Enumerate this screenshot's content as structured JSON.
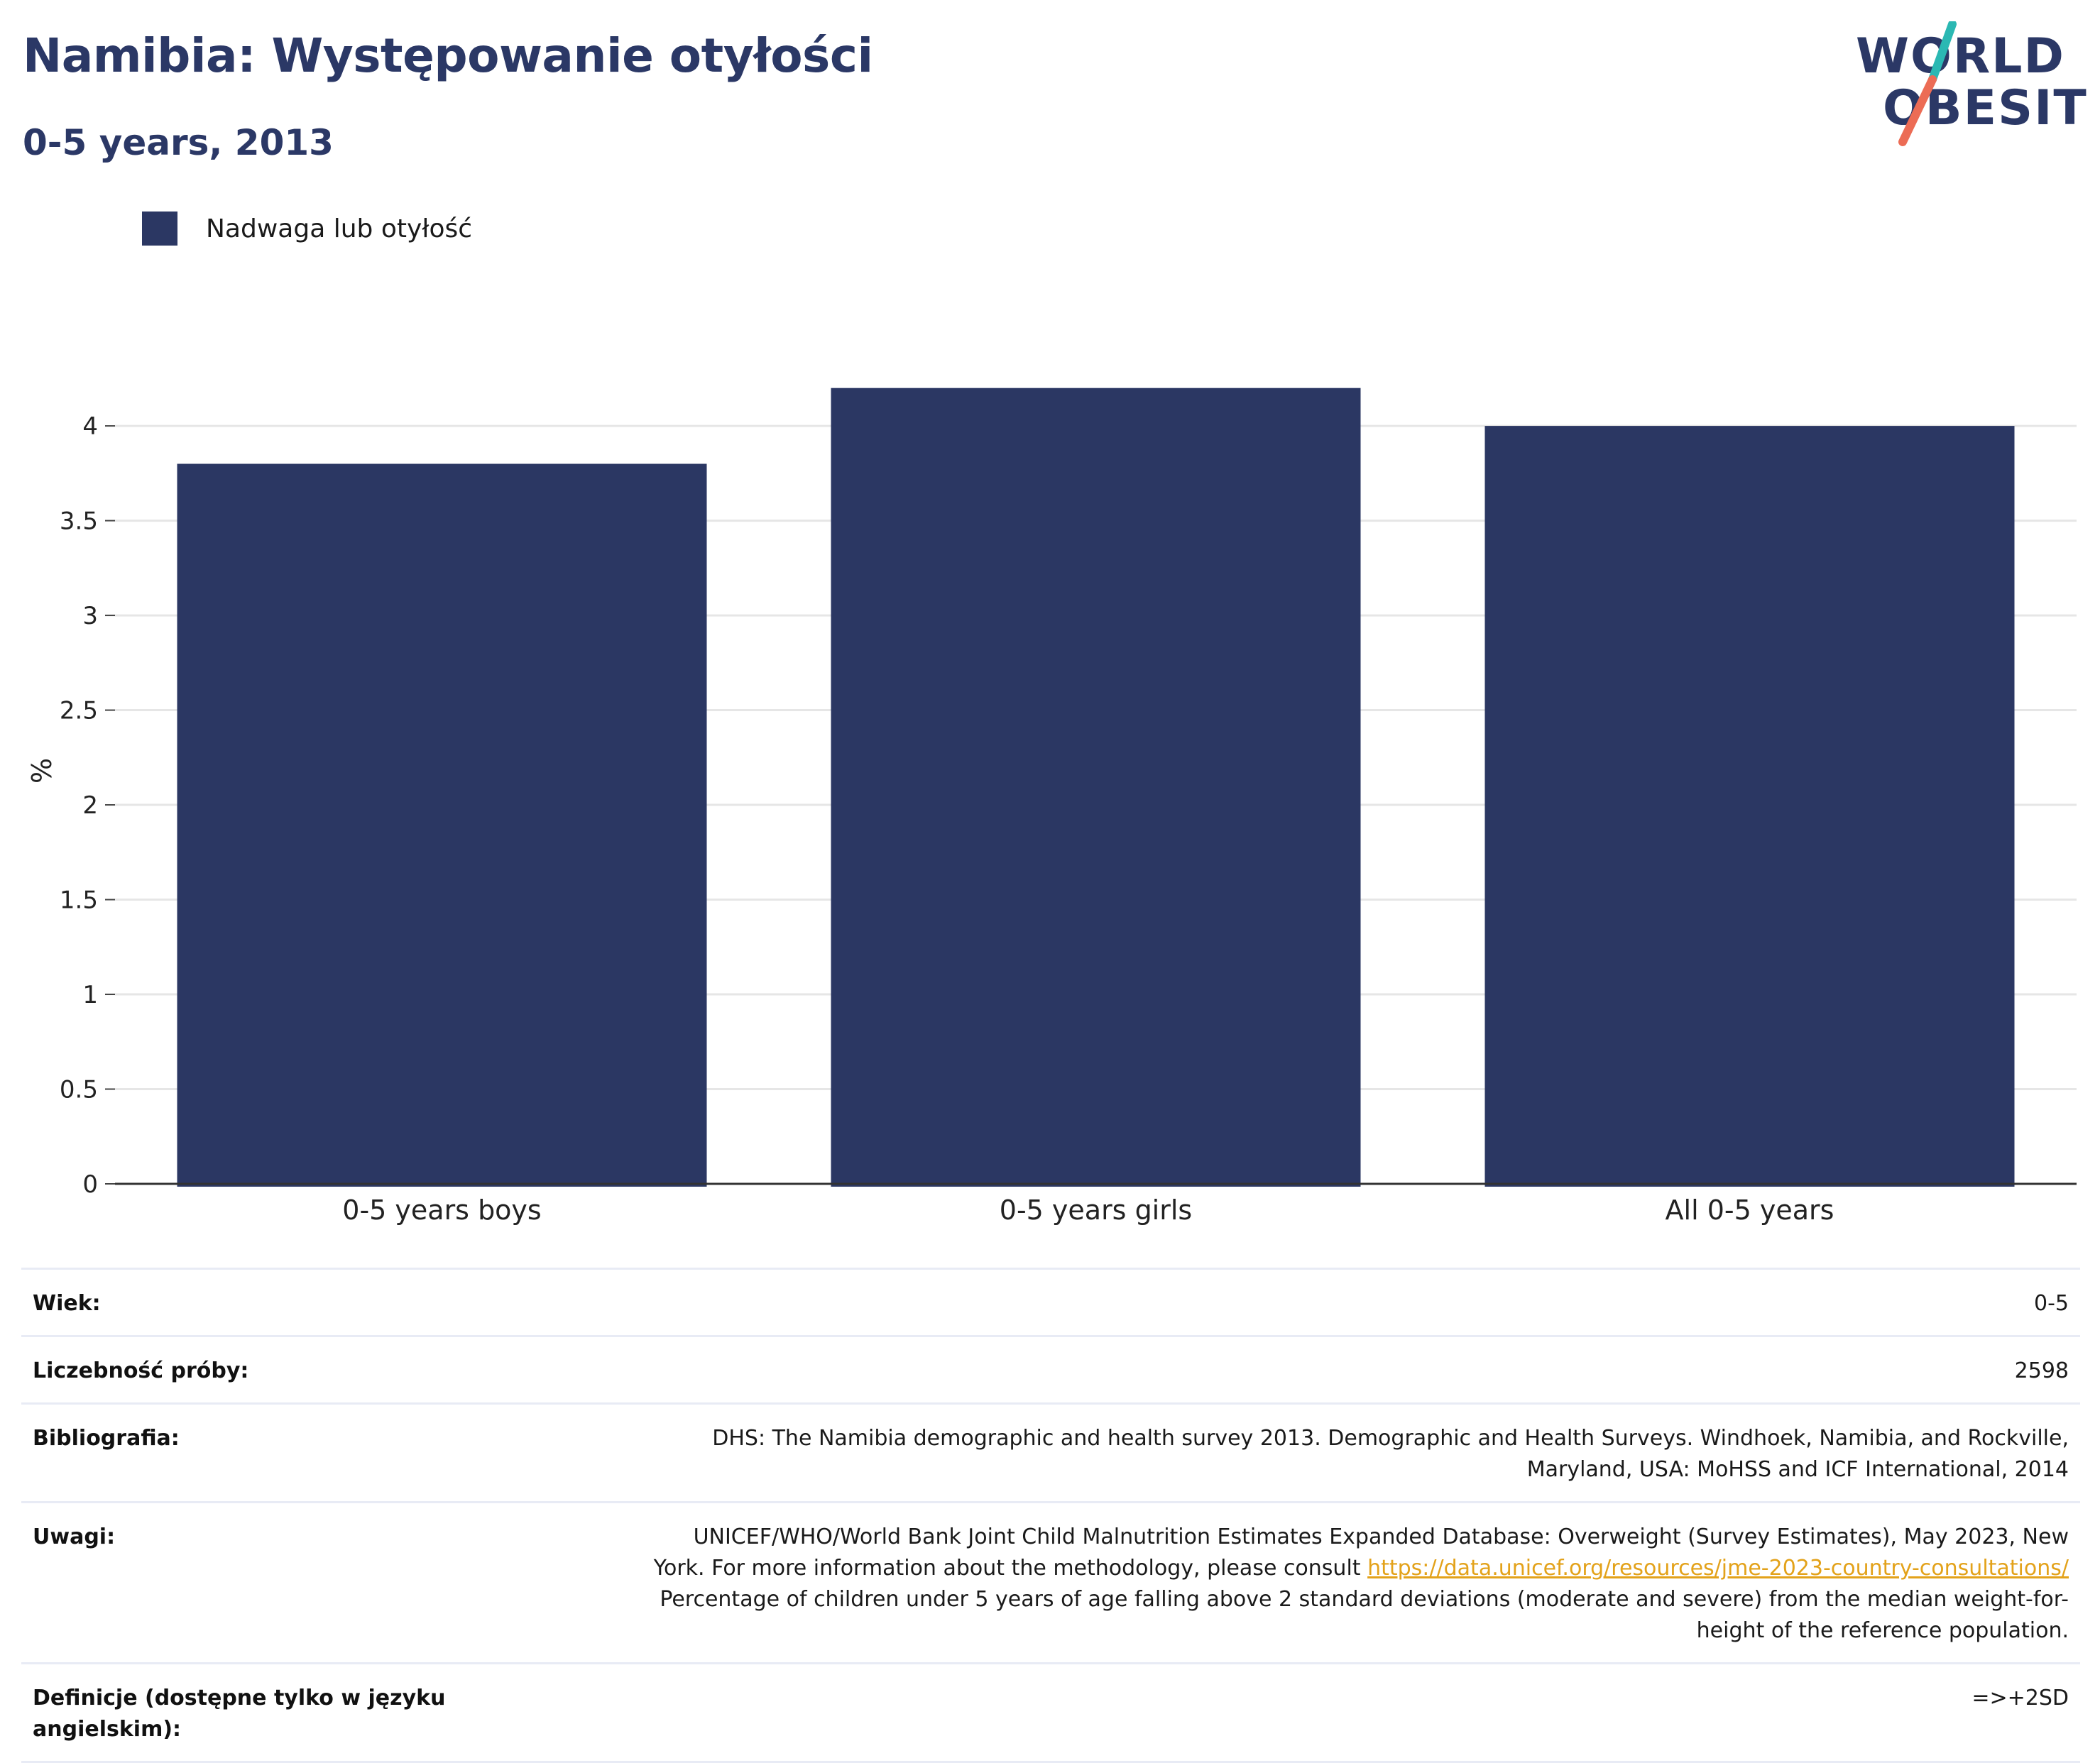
{
  "header": {
    "title": "Namibia: Występowanie otyłości",
    "subtitle": "0-5 years, 2013"
  },
  "logo": {
    "line1": "WORLD",
    "line2": "OBESITY"
  },
  "colors": {
    "bar": "#2b3763",
    "title": "#2b3866",
    "grid": "#e6e6e6",
    "link": "#e3a21a",
    "logo_teal": "#2bb8b3",
    "logo_coral": "#ec6c55"
  },
  "legend": {
    "label": "Nadwaga lub otyłość"
  },
  "chart_data": {
    "type": "bar",
    "categories": [
      "0-5 years boys",
      "0-5 years girls",
      "All 0-5 years"
    ],
    "series": [
      {
        "name": "Nadwaga lub otyłość",
        "values": [
          3.8,
          4.2,
          4.0
        ]
      }
    ],
    "ylabel": "%",
    "xlabel": "",
    "ylim": [
      0,
      4.3
    ],
    "yticks": [
      0,
      0.5,
      1,
      1.5,
      2,
      2.5,
      3,
      3.5,
      4
    ],
    "ytick_labels": [
      "0",
      "0.5",
      "1",
      "1.5",
      "2",
      "2.5",
      "3",
      "3.5",
      "4"
    ],
    "grid": true,
    "legend_position": "top-left"
  },
  "info": {
    "age": {
      "label": "Wiek:",
      "value": "0-5"
    },
    "sample": {
      "label": "Liczebność próby:",
      "value": "2598"
    },
    "bibliography": {
      "label": "Bibliografia:",
      "line1": "DHS: The Namibia demographic and health survey 2013. Demographic and Health Surveys. Windhoek, Namibia, and Rockville,",
      "line2": "Maryland, USA: MoHSS and ICF International, 2014"
    },
    "notes": {
      "label": "Uwagi:",
      "line1": "UNICEF/WHO/World Bank Joint Child Malnutrition Estimates Expanded Database: Overweight (Survey Estimates), May 2023, New",
      "line2_prefix": "York. For more information about the methodology, please consult ",
      "link": "https://data.unicef.org/resources/jme-2023-country-consultations/",
      "line3": "Percentage of children under 5 years of age falling above 2 standard deviations (moderate and severe) from the median weight-for-",
      "line4": "height of the reference population."
    },
    "definitions": {
      "label": "Definicje (dostępne tylko w języku angielskim):",
      "value": "=>+2SD"
    }
  }
}
